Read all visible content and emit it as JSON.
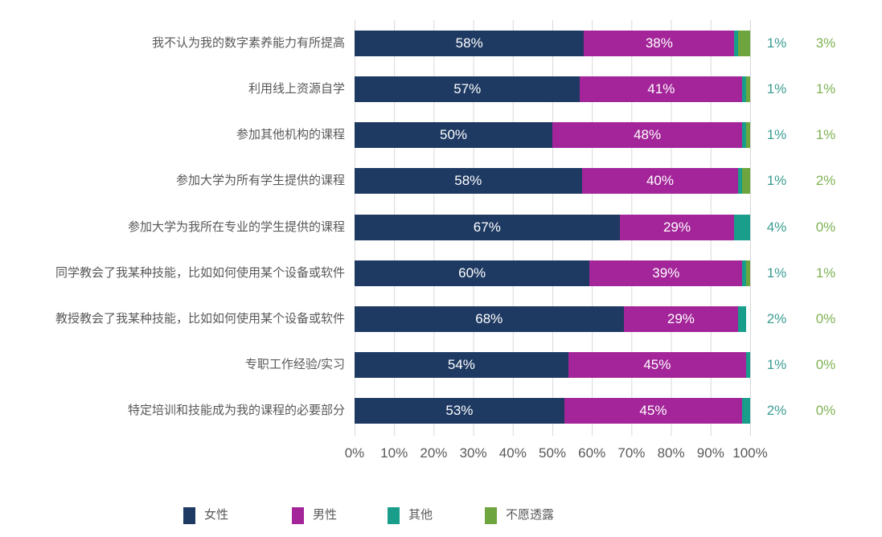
{
  "chart_data": {
    "type": "bar",
    "orientation": "horizontal",
    "stacked": true,
    "title": "",
    "categories": [
      "我不认为我的数字素养能力有所提高",
      "利用线上资源自学",
      "参加其他机构的课程",
      "参加大学为所有学生提供的课程",
      "参加大学为我所在专业的学生提供的课程",
      "同学教会了我某种技能，比如如何使用某个设备或软件",
      "教授教会了我某种技能，比如如何使用某个设备或软件",
      "专职工作经验/实习",
      "特定培训和技能成为我的课程的必要部分"
    ],
    "series": [
      {
        "name": "女性",
        "color": "#1E3A63",
        "labels_inside": true,
        "values": [
          58,
          57,
          50,
          58,
          67,
          60,
          68,
          54,
          53
        ]
      },
      {
        "name": "男性",
        "color": "#A32599",
        "labels_inside": true,
        "values": [
          38,
          41,
          48,
          40,
          29,
          39,
          29,
          45,
          45
        ]
      },
      {
        "name": "其他",
        "color": "#189E8B",
        "labels_inside": false,
        "value_text_color": "#3B9D92",
        "values": [
          1,
          1,
          1,
          1,
          4,
          1,
          2,
          1,
          2
        ]
      },
      {
        "name": "不愿透露",
        "color": "#6FA53E",
        "labels_inside": false,
        "value_text_color": "#7EB254",
        "values": [
          3,
          1,
          1,
          2,
          0,
          1,
          0,
          0,
          0
        ]
      }
    ],
    "x_ticks": [
      "0%",
      "10%",
      "20%",
      "30%",
      "40%",
      "50%",
      "60%",
      "70%",
      "80%",
      "90%",
      "100%"
    ],
    "xlim": [
      0,
      100
    ],
    "unit": "%",
    "grid": "vertical",
    "grid_color": "#D9D9D9",
    "axis_text_color": "#595959",
    "legend_position": "bottom"
  }
}
